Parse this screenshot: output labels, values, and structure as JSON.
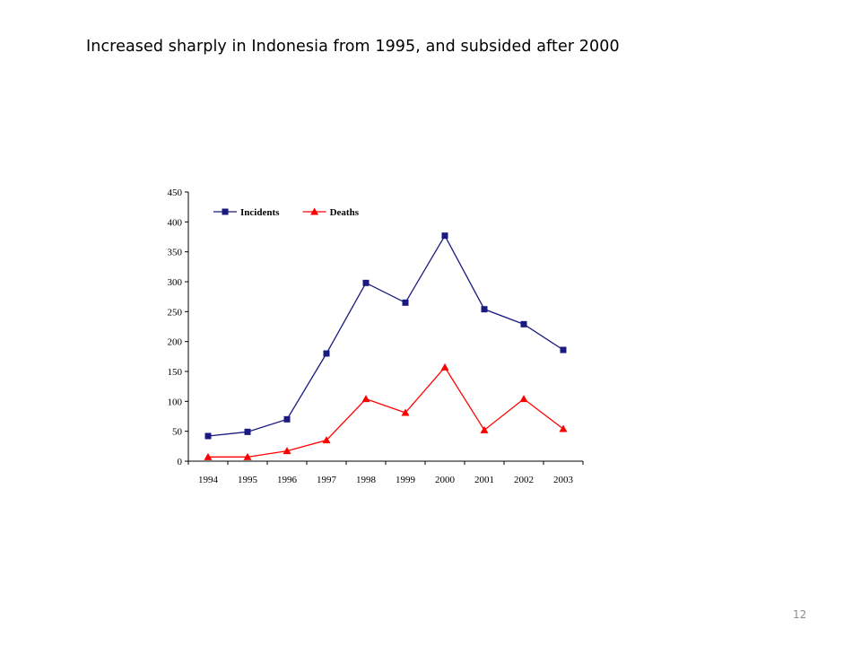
{
  "slide": {
    "title": "Increased sharply in Indonesia  from 1995,  and subsided after 2000",
    "page_number": "12"
  },
  "chart_data": {
    "type": "line",
    "title": "",
    "xlabel": "",
    "ylabel": "",
    "categories": [
      "1994",
      "1995",
      "1996",
      "1997",
      "1998",
      "1999",
      "2000",
      "2001",
      "2002",
      "2003"
    ],
    "ylim": [
      0,
      450
    ],
    "yticks": [
      0,
      50,
      100,
      150,
      200,
      250,
      300,
      350,
      400,
      450
    ],
    "grid": false,
    "legend_position": "top-left",
    "series": [
      {
        "name": "Incidents",
        "color": "#1a1a80",
        "marker": "square",
        "values": [
          42,
          49,
          70,
          180,
          298,
          265,
          377,
          254,
          229,
          186
        ]
      },
      {
        "name": "Deaths",
        "color": "#ff0000",
        "marker": "triangle",
        "values": [
          7,
          7,
          17,
          35,
          104,
          81,
          157,
          52,
          104,
          54
        ]
      }
    ]
  }
}
